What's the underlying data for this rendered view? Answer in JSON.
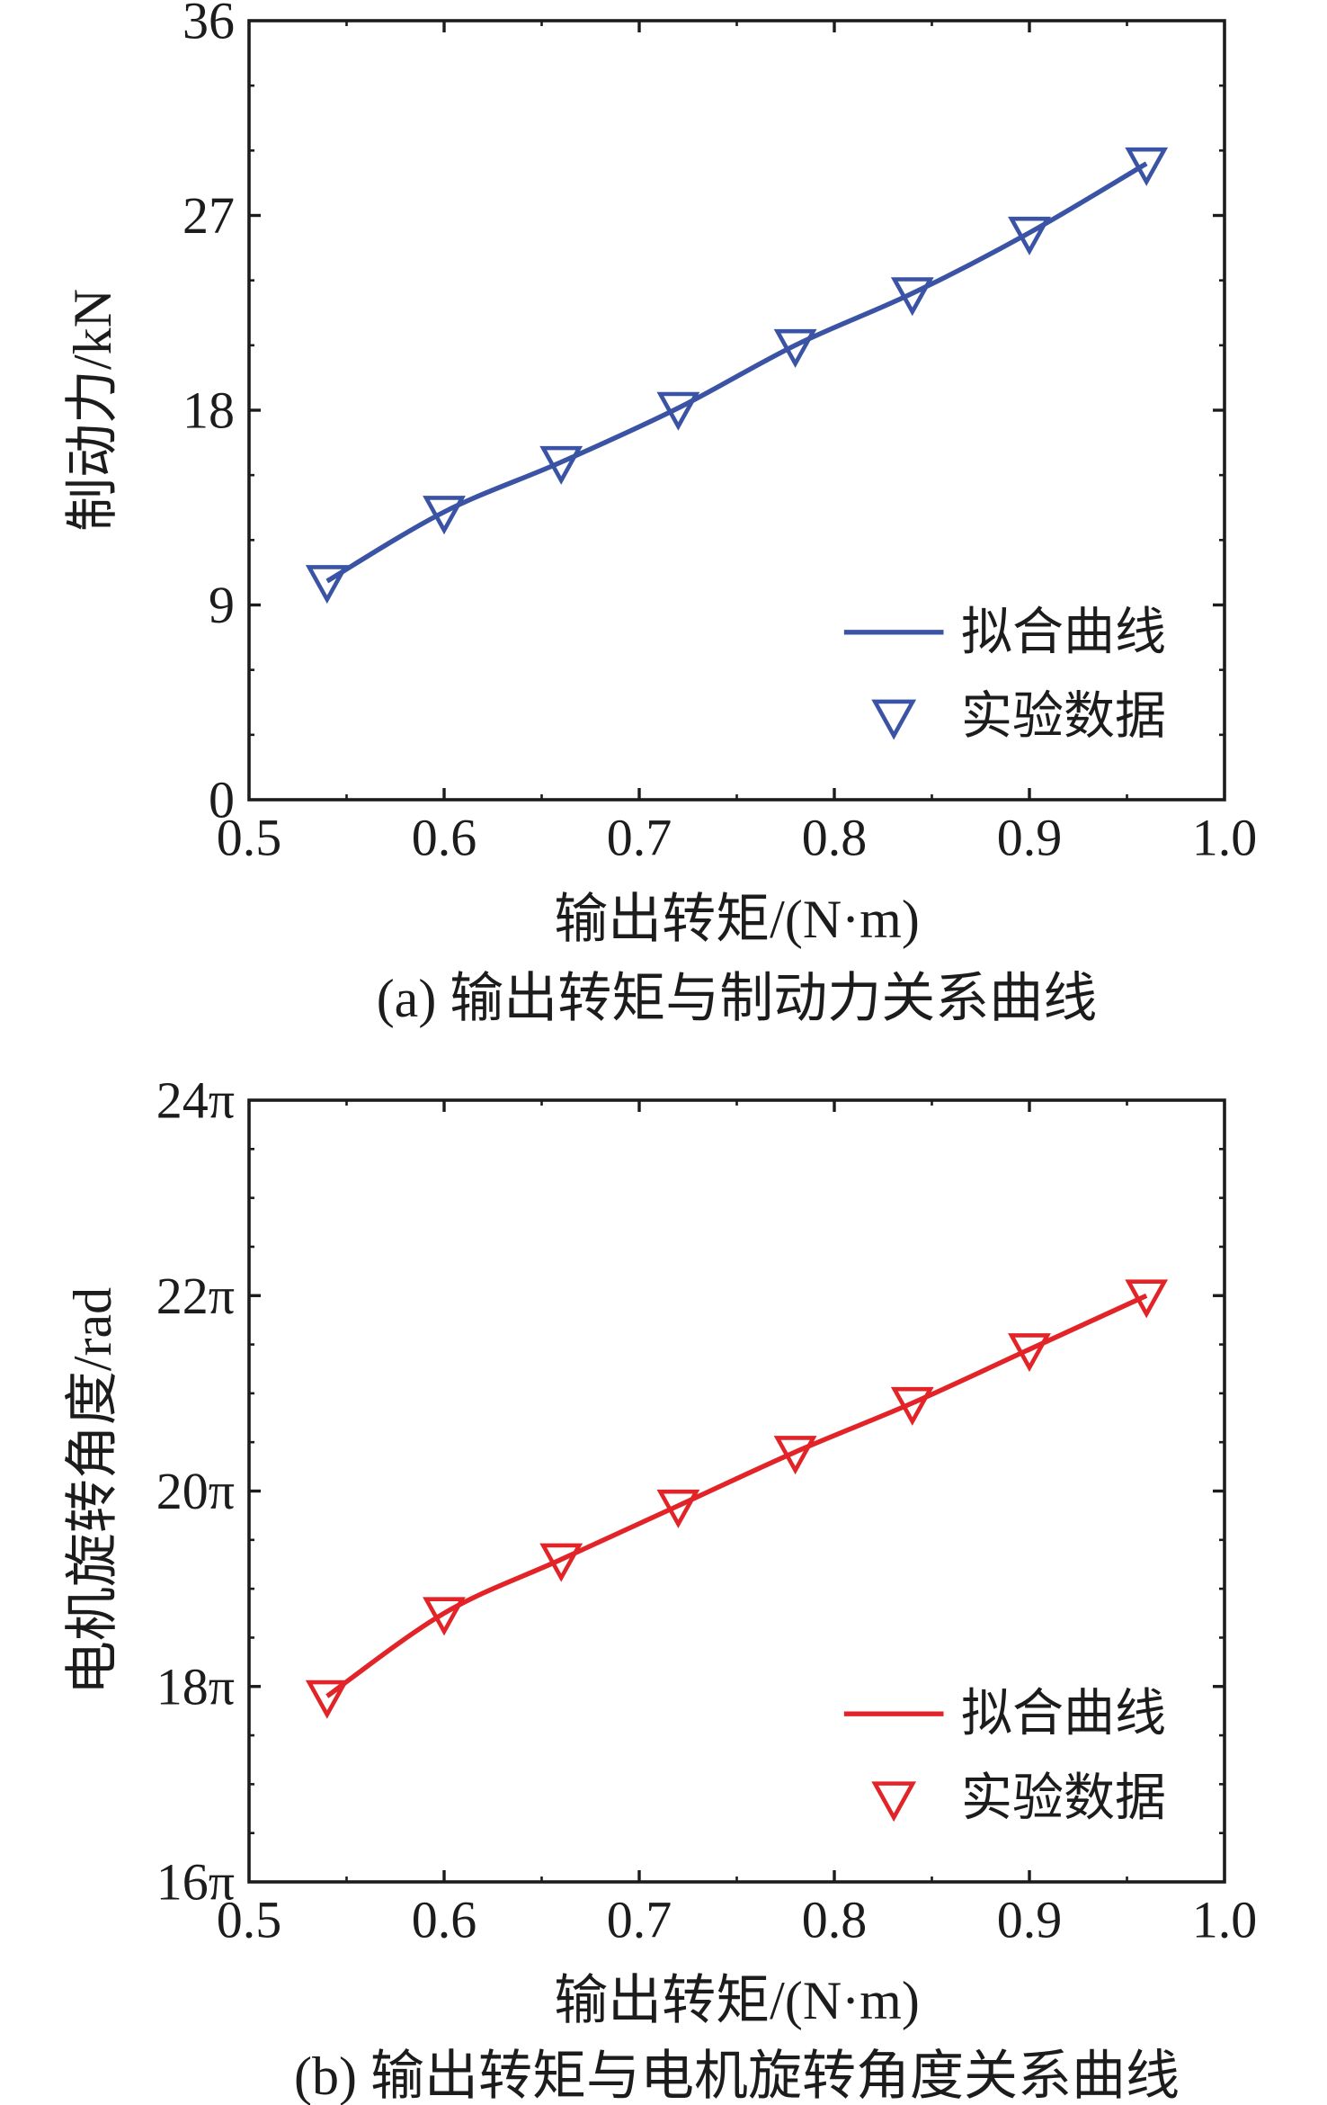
{
  "figure": {
    "background": "#ffffff",
    "text_color": "#1c1c1c",
    "axis_color": "#1c1c1c"
  },
  "chart_data": [
    {
      "id": "a",
      "type": "line",
      "caption": "(a) 输出转矩与制动力关系曲线",
      "xlabel": "输出转矩/(N·m)",
      "ylabel": "制动力/kN",
      "color": "#3a53a4",
      "xlim": [
        0.5,
        1.0
      ],
      "ylim": [
        0,
        36
      ],
      "xticks": {
        "values": [
          0.5,
          0.6,
          0.7,
          0.8,
          0.9,
          1.0
        ],
        "labels": [
          "0.5",
          "0.6",
          "0.7",
          "0.8",
          "0.9",
          "1.0"
        ]
      },
      "yticks": {
        "values": [
          0,
          9,
          18,
          27,
          36
        ],
        "labels": [
          "0",
          "9",
          "18",
          "27",
          "36"
        ]
      },
      "x_minor_step": 0.05,
      "y_minor_step": 3,
      "grid": false,
      "legend_position": "lower right",
      "x": [
        0.54,
        0.6,
        0.66,
        0.72,
        0.78,
        0.84,
        0.9,
        0.96
      ],
      "y": [
        10.1,
        13.3,
        15.6,
        18.1,
        21.0,
        23.4,
        26.2,
        29.4
      ],
      "series": [
        {
          "name": "拟合曲线",
          "kind": "line"
        },
        {
          "name": "实验数据",
          "kind": "scatter",
          "marker": "triangle-down"
        }
      ]
    },
    {
      "id": "b",
      "type": "line",
      "caption": "(b) 输出转矩与电机旋转角度关系曲线",
      "xlabel": "输出转矩/(N·m)",
      "ylabel": "电机旋转角度/rad",
      "color": "#e22428",
      "xlim": [
        0.5,
        1.0
      ],
      "ylim": [
        16,
        24
      ],
      "y_unit": "π rad",
      "xticks": {
        "values": [
          0.5,
          0.6,
          0.7,
          0.8,
          0.9,
          1.0
        ],
        "labels": [
          "0.5",
          "0.6",
          "0.7",
          "0.8",
          "0.9",
          "1.0"
        ]
      },
      "yticks": {
        "values": [
          16,
          18,
          20,
          22,
          24
        ],
        "labels": [
          "16π",
          "18π",
          "20π",
          "22π",
          "24π"
        ]
      },
      "x_minor_step": 0.05,
      "y_minor_step": 0.5,
      "grid": false,
      "legend_position": "lower right",
      "x": [
        0.54,
        0.6,
        0.66,
        0.72,
        0.78,
        0.84,
        0.9,
        0.96
      ],
      "y": [
        17.9,
        18.75,
        19.3,
        19.85,
        20.4,
        20.9,
        21.45,
        22.0
      ],
      "series": [
        {
          "name": "拟合曲线",
          "kind": "line"
        },
        {
          "name": "实验数据",
          "kind": "scatter",
          "marker": "triangle-down"
        }
      ]
    }
  ]
}
